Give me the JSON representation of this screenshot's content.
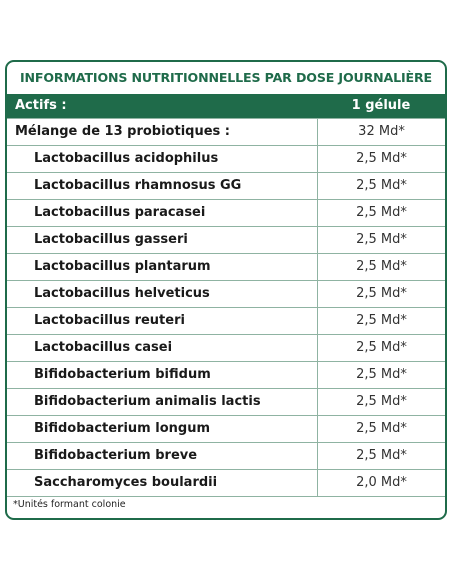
{
  "title": "INFORMATIONS NUTRITIONNELLES PAR DOSE JOURNALIÈRE",
  "header": {
    "col1": "Actifs :",
    "col2": "1 gélule"
  },
  "rows": [
    {
      "name": "Mélange de 13 probiotiques :",
      "value": "32 Md*"
    },
    {
      "name": "Lactobacillus acidophilus",
      "value": "2,5 Md*"
    },
    {
      "name": "Lactobacillus rhamnosus GG",
      "value": "2,5 Md*"
    },
    {
      "name": "Lactobacillus paracasei",
      "value": "2,5 Md*"
    },
    {
      "name": "Lactobacillus gasseri",
      "value": "2,5 Md*"
    },
    {
      "name": "Lactobacillus plantarum",
      "value": "2,5 Md*"
    },
    {
      "name": "Lactobacillus helveticus",
      "value": "2,5 Md*"
    },
    {
      "name": "Lactobacillus reuteri",
      "value": "2,5 Md*"
    },
    {
      "name": "Lactobacillus casei",
      "value": "2,5 Md*"
    },
    {
      "name": "Bifidobacterium bifidum",
      "value": "2,5 Md*"
    },
    {
      "name": "Bifidobacterium animalis lactis",
      "value": "2,5 Md*"
    },
    {
      "name": "Bifidobacterium longum",
      "value": "2,5 Md*"
    },
    {
      "name": "Bifidobacterium breve",
      "value": "2,5 Md*"
    },
    {
      "name": "Saccharomyces boulardii",
      "value": "2,0 Md*"
    }
  ],
  "footnote": "*Unités formant colonie",
  "colors": {
    "brand_green": "#1f6b4a",
    "rule": "#8fb3a2"
  }
}
